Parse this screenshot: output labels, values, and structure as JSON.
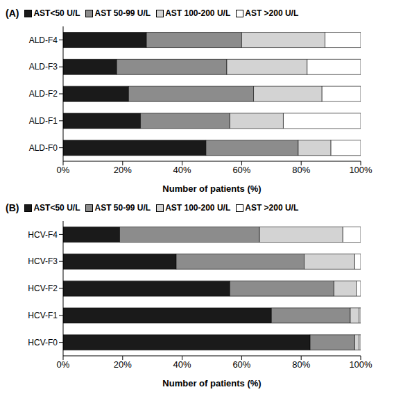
{
  "chart_data": [
    {
      "type": "bar",
      "title": "(A)",
      "orientation": "horizontal",
      "stacked": true,
      "legend": "top",
      "categories": [
        "ALD-F4",
        "ALD-F3",
        "ALD-F2",
        "ALD-F1",
        "ALD-F0"
      ],
      "series": [
        {
          "name": "AST<50 U/L",
          "color": "#1a1a1a",
          "values": [
            28,
            18,
            22,
            26,
            48
          ]
        },
        {
          "name": "AST 50-99 U/L",
          "color": "#8c8c8c",
          "values": [
            32,
            37,
            42,
            30,
            31
          ]
        },
        {
          "name": "AST 100-200 U/L",
          "color": "#d3d3d3",
          "values": [
            28,
            27,
            23,
            18,
            11
          ]
        },
        {
          "name": "AST >200 U/L",
          "color": "#ffffff",
          "values": [
            12,
            18,
            13,
            26,
            10
          ]
        }
      ],
      "xlim": [
        0,
        100
      ],
      "xticks": [
        {
          "value": 0,
          "label": "0%"
        },
        {
          "value": 20,
          "label": "20%"
        },
        {
          "value": 40,
          "label": "40%"
        },
        {
          "value": 60,
          "label": "60%"
        },
        {
          "value": 80,
          "label": "80%"
        },
        {
          "value": 100,
          "label": "100%"
        }
      ],
      "x_label": "Number of patients (%)"
    },
    {
      "type": "bar",
      "title": "(B)",
      "orientation": "horizontal",
      "stacked": true,
      "legend": "top",
      "categories": [
        "HCV-F4",
        "HCV-F3",
        "HCV-F2",
        "HCV-F1",
        "HCV-F0"
      ],
      "series": [
        {
          "name": "AST<50 U/L",
          "color": "#1a1a1a",
          "values": [
            19,
            38,
            56,
            70,
            83
          ]
        },
        {
          "name": "AST 50-99 U/L",
          "color": "#8c8c8c",
          "values": [
            47,
            43,
            35,
            26.5,
            15
          ]
        },
        {
          "name": "AST 100-200 U/L",
          "color": "#d3d3d3",
          "values": [
            28,
            17,
            7.5,
            3,
            1.5
          ]
        },
        {
          "name": "AST >200 U/L",
          "color": "#ffffff",
          "values": [
            6,
            2,
            1.5,
            0.5,
            0.5
          ]
        }
      ],
      "xlim": [
        0,
        100
      ],
      "xticks": [
        {
          "value": 0,
          "label": "0%"
        },
        {
          "value": 20,
          "label": "20%"
        },
        {
          "value": 40,
          "label": "40%"
        },
        {
          "value": 60,
          "label": "60%"
        },
        {
          "value": 80,
          "label": "80%"
        },
        {
          "value": 100,
          "label": "100%"
        }
      ],
      "x_label": "Number of patients (%)"
    }
  ]
}
